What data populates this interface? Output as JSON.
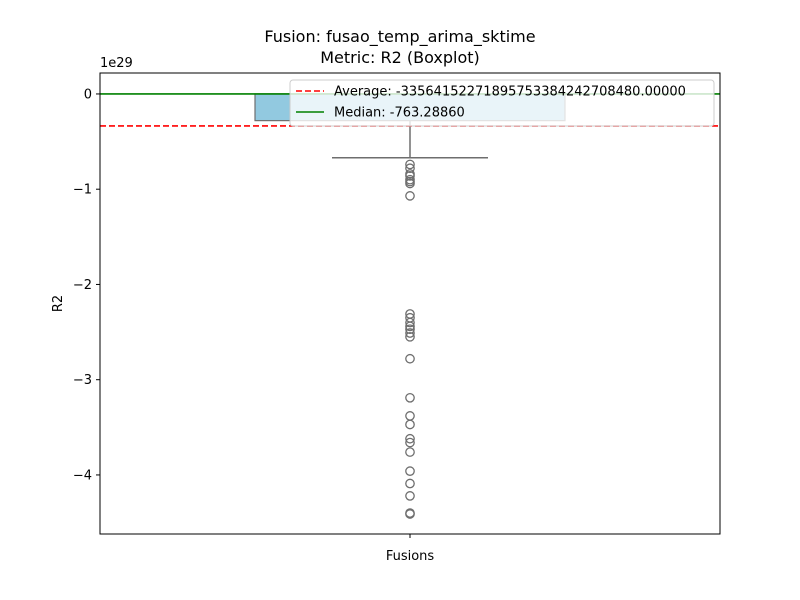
{
  "title_line1": "Fusion: fusao_temp_arima_sktime",
  "title_line2": "Metric: R2 (Boxplot)",
  "chart_data": {
    "type": "boxplot",
    "categories": [
      "Fusions"
    ],
    "xlabel": "Fusions",
    "ylabel": "R2",
    "offset_label": "1e29",
    "ylim": [
      -4.62,
      0.22
    ],
    "yticks": [
      0,
      -1,
      -2,
      -3,
      -4
    ],
    "ytick_labels": [
      "0",
      "−1",
      "−2",
      "−3",
      "−4"
    ],
    "box": {
      "q1": -0.28,
      "median": -7.632886e-27,
      "q3": 0.0,
      "whisker_low": -0.67,
      "whisker_high": 0.0
    },
    "outliers": [
      -0.74,
      -0.78,
      -0.84,
      -0.86,
      -0.9,
      -0.92,
      -0.94,
      -1.07,
      -2.31,
      -2.35,
      -2.4,
      -2.44,
      -2.47,
      -2.51,
      -2.55,
      -2.78,
      -3.19,
      -3.38,
      -3.47,
      -3.62,
      -3.66,
      -3.76,
      -3.96,
      -4.09,
      -4.22,
      -4.4,
      -4.41
    ],
    "average": -0.3356415227189575,
    "legend": [
      {
        "label": "Average: -335641522718957533842427084​80.00000",
        "style": "dashed",
        "color": "#ff0000"
      },
      {
        "label": "Median: -763.28860",
        "style": "solid",
        "color": "#008000"
      }
    ],
    "colors": {
      "box": "#92c9e0",
      "box_edge": "#6e6e6e",
      "average": "#ff0000",
      "median": "#008000"
    }
  }
}
